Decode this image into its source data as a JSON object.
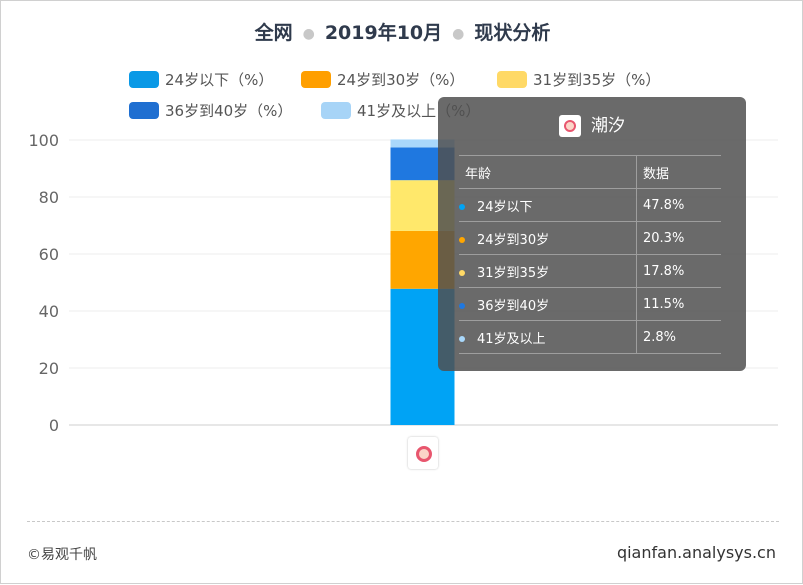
{
  "title": {
    "parts": [
      "全网",
      "2019年10月",
      "现状分析"
    ]
  },
  "legend": [
    {
      "label": "24岁以下（%）",
      "color": "#0a99e6"
    },
    {
      "label": "24岁到30岁（%）",
      "color": "#ff9f00"
    },
    {
      "label": "31岁到35岁（%）",
      "color": "#ffd966"
    },
    {
      "label": "36岁到40岁（%）",
      "color": "#1f6fd1"
    },
    {
      "label": "41岁及以上（%）",
      "color": "#a7d4f7"
    }
  ],
  "chart_data": {
    "type": "bar",
    "stacked": true,
    "categories": [
      "潮汐"
    ],
    "series": [
      {
        "name": "24岁以下（%）",
        "values": [
          47.8
        ],
        "color": "#00a3f5"
      },
      {
        "name": "24岁到30岁（%）",
        "values": [
          20.3
        ],
        "color": "#ffa600"
      },
      {
        "name": "31岁到35岁（%）",
        "values": [
          17.8
        ],
        "color": "#ffe86b"
      },
      {
        "name": "36岁到40岁（%）",
        "values": [
          11.5
        ],
        "color": "#1f78e0"
      },
      {
        "name": "41岁及以上（%）",
        "values": [
          2.8
        ],
        "color": "#a9d8fb"
      }
    ],
    "ylim": [
      0,
      100
    ],
    "yticks": [
      0,
      20,
      40,
      60,
      80,
      100
    ],
    "grid": true,
    "legend_position": "top"
  },
  "tooltip": {
    "name": "潮汐",
    "col_age": "年龄",
    "col_data": "数据",
    "rows": [
      {
        "label": "24岁以下",
        "value": "47.8%",
        "color": "#00a3f5"
      },
      {
        "label": "24岁到30岁",
        "value": "20.3%",
        "color": "#ffa600"
      },
      {
        "label": "31岁到35岁",
        "value": "17.8%",
        "color": "#ffd966"
      },
      {
        "label": "36岁到40岁",
        "value": "11.5%",
        "color": "#1f78e0"
      },
      {
        "label": "41岁及以上",
        "value": "2.8%",
        "color": "#a9d8fb"
      }
    ]
  },
  "footer": {
    "copyright": "©易观千帆",
    "site": "qianfan.analysys.cn"
  }
}
